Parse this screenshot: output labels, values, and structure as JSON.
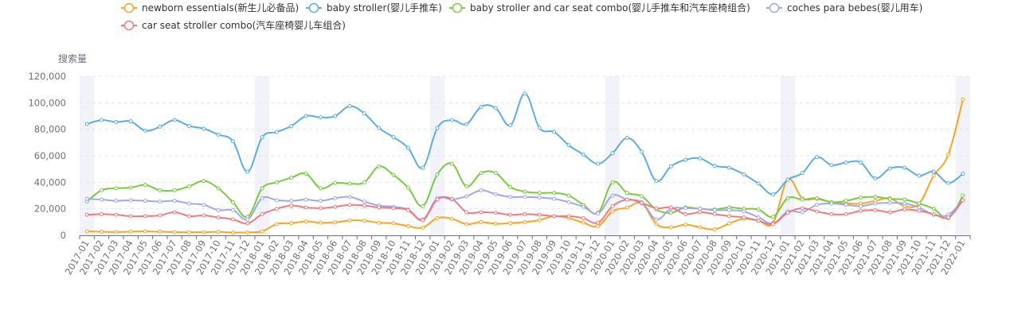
{
  "chart_data": {
    "type": "line",
    "title": "",
    "ylabel": "搜索量",
    "ylim": [
      0,
      120000
    ],
    "yticks": [
      0,
      20000,
      40000,
      60000,
      80000,
      100000,
      120000
    ],
    "ytick_labels": [
      "0",
      "20,000",
      "40,000",
      "60,000",
      "80,000",
      "100,000",
      "120,000"
    ],
    "grid": true,
    "legend_position": "top",
    "highlighted_x": [
      "2017-01",
      "2018-01",
      "2019-01",
      "2020-01",
      "2021-01",
      "2022-01"
    ],
    "x": [
      "2017-01",
      "2017-02",
      "2017-03",
      "2017-04",
      "2017-05",
      "2017-06",
      "2017-07",
      "2017-08",
      "2017-09",
      "2017-10",
      "2017-11",
      "2017-12",
      "2018-01",
      "2018-02",
      "2018-03",
      "2018-04",
      "2018-05",
      "2018-06",
      "2018-07",
      "2018-08",
      "2018-09",
      "2018-10",
      "2018-11",
      "2018-12",
      "2019-01",
      "2019-02",
      "2019-03",
      "2019-04",
      "2019-05",
      "2019-06",
      "2019-07",
      "2019-08",
      "2019-09",
      "2019-10",
      "2019-11",
      "2019-12",
      "2020-01",
      "2020-02",
      "2020-03",
      "2020-04",
      "2020-05",
      "2020-06",
      "2020-07",
      "2020-08",
      "2020-09",
      "2020-10",
      "2020-11",
      "2020-12",
      "2021-01",
      "2021-02",
      "2021-03",
      "2021-04",
      "2021-05",
      "2021-06",
      "2021-07",
      "2021-08",
      "2021-09",
      "2021-10",
      "2021-11",
      "2021-12",
      "2022-01"
    ],
    "series": [
      {
        "name": "newborn essentials(新生儿必备品)",
        "color": "#f5a623",
        "values": [
          3000,
          2700,
          2500,
          2800,
          2900,
          2700,
          2500,
          2300,
          2400,
          2600,
          2100,
          2200,
          3000,
          8500,
          9200,
          10500,
          9500,
          9800,
          11200,
          11000,
          9500,
          9000,
          7000,
          5800,
          13000,
          12500,
          8500,
          10000,
          8700,
          9200,
          10000,
          11500,
          14500,
          13000,
          9500,
          7000,
          18000,
          21000,
          24000,
          8500,
          6000,
          8000,
          6000,
          4500,
          9000,
          12500,
          11000,
          9500,
          42000,
          28000,
          27500,
          25000,
          24000,
          24000,
          26000,
          28000,
          22000,
          24000,
          45000,
          61000,
          102500
        ]
      },
      {
        "name": "baby stroller(婴儿手推车)",
        "color": "#5dade2",
        "values": [
          84000,
          87000,
          85500,
          86000,
          79000,
          82000,
          87000,
          82500,
          80500,
          76000,
          71000,
          48000,
          74000,
          78000,
          82500,
          90000,
          89000,
          90000,
          97500,
          92000,
          81000,
          74000,
          66000,
          51000,
          81000,
          87000,
          84000,
          97000,
          96000,
          83000,
          107000,
          81000,
          78000,
          68000,
          61000,
          54000,
          62000,
          73500,
          63000,
          41000,
          52000,
          57000,
          58000,
          52500,
          51000,
          46000,
          39000,
          31000,
          42000,
          47000,
          59000,
          53000,
          55000,
          55000,
          43000,
          50500,
          51000,
          45000,
          48000,
          39500,
          46500
        ]
      },
      {
        "name": "baby stroller and car seat combo(婴儿手推车和汽车座椅组合)",
        "color": "#7ac943",
        "values": [
          25500,
          34000,
          35500,
          36000,
          38000,
          34000,
          34000,
          37000,
          41000,
          35500,
          25000,
          14000,
          35500,
          40000,
          43500,
          46500,
          35500,
          39500,
          39000,
          40000,
          52000,
          45500,
          36000,
          22000,
          46000,
          54000,
          37000,
          47000,
          47000,
          36500,
          33000,
          32000,
          32000,
          30000,
          23000,
          17000,
          40000,
          32000,
          29500,
          19500,
          17000,
          21000,
          20000,
          19500,
          21000,
          20000,
          19500,
          14000,
          28000,
          27000,
          28000,
          25000,
          26000,
          28500,
          29000,
          27500,
          27000,
          24000,
          20000,
          13000,
          30000
        ]
      },
      {
        "name": "coches para bebes(婴儿用车)",
        "color": "#9fa8e8",
        "values": [
          27500,
          27000,
          26000,
          26500,
          26000,
          25500,
          26000,
          24000,
          23000,
          19000,
          19000,
          12000,
          28000,
          26500,
          26000,
          27000,
          26000,
          28000,
          29000,
          25500,
          22500,
          21500,
          19500,
          12000,
          28000,
          27000,
          29500,
          34000,
          31000,
          29000,
          29000,
          28500,
          27500,
          25000,
          21500,
          16500,
          30000,
          27000,
          25000,
          12000,
          20000,
          20500,
          20000,
          19000,
          19000,
          18000,
          13500,
          9000,
          18000,
          17500,
          23000,
          24000,
          23000,
          22000,
          24000,
          24500,
          24000,
          21000,
          15500,
          15500,
          26500
        ]
      },
      {
        "name": "car seat stroller combo(汽车座椅婴儿车组合)",
        "color": "#ee7b7f",
        "values": [
          15500,
          16000,
          15500,
          14500,
          14500,
          15000,
          17500,
          14500,
          15000,
          13500,
          12000,
          9000,
          16000,
          20000,
          22500,
          21000,
          20500,
          21500,
          23000,
          22500,
          21000,
          20500,
          19000,
          11500,
          27000,
          27500,
          17500,
          17500,
          17000,
          15500,
          16000,
          15500,
          14500,
          14500,
          13000,
          9500,
          22000,
          27000,
          24500,
          20500,
          21000,
          16000,
          17500,
          16000,
          14500,
          13500,
          11000,
          8500,
          17000,
          20500,
          18000,
          16000,
          16000,
          18500,
          19000,
          17500,
          19500,
          18500,
          16000,
          13500,
          26500
        ]
      }
    ]
  }
}
